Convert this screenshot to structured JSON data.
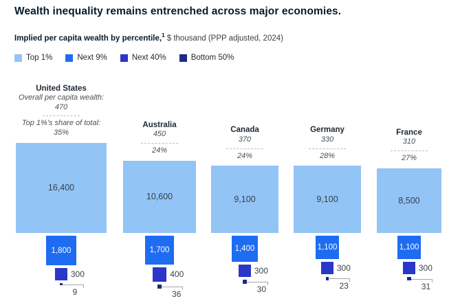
{
  "header": {
    "title": "Wealth inequality remains entrenched across major economies.",
    "subtitle_bold": "Implied per capita wealth by percentile,",
    "subtitle_sup": "1",
    "subtitle_rest": " $ thousand (PPP adjusted, 2024)"
  },
  "legend": {
    "items": [
      {
        "label": "Top 1%",
        "color": "#92c4f5"
      },
      {
        "label": "Next 9%",
        "color": "#1e6cf2"
      },
      {
        "label": "Next 40%",
        "color": "#2a37c8"
      },
      {
        "label": "Bottom 50%",
        "color": "#1c2b85"
      }
    ]
  },
  "chart_data": {
    "type": "proportional-area-squares",
    "title": "Wealth inequality remains entrenched across major economies.",
    "subtitle": "Implied per capita wealth by percentile, $ thousand (PPP adjusted, 2024)",
    "unit": "$ thousand per capita, PPP adjusted, 2024",
    "scale_note": "square area proportional to value",
    "segments": [
      "Top 1%",
      "Next 9%",
      "Next 40%",
      "Bottom 50%"
    ],
    "countries": [
      {
        "name": "United States",
        "overall_label": "Overall per capita wealth:",
        "overall": "470",
        "share_label": "Top 1%'s share of total:",
        "share": "35%",
        "values": {
          "top1": 16400,
          "next9": 1800,
          "next40": 300,
          "bottom50": 9
        },
        "labels": {
          "top1": "16,400",
          "next9": "1,800",
          "next40": "300",
          "bottom50": "9"
        }
      },
      {
        "name": "Australia",
        "overall": "450",
        "share": "24%",
        "values": {
          "top1": 10600,
          "next9": 1700,
          "next40": 400,
          "bottom50": 36
        },
        "labels": {
          "top1": "10,600",
          "next9": "1,700",
          "next40": "400",
          "bottom50": "36"
        }
      },
      {
        "name": "Canada",
        "overall": "370",
        "share": "24%",
        "values": {
          "top1": 9100,
          "next9": 1400,
          "next40": 300,
          "bottom50": 30
        },
        "labels": {
          "top1": "9,100",
          "next9": "1,400",
          "next40": "300",
          "bottom50": "30"
        }
      },
      {
        "name": "Germany",
        "overall": "330",
        "share": "28%",
        "values": {
          "top1": 9100,
          "next9": 1100,
          "next40": 300,
          "bottom50": 23
        },
        "labels": {
          "top1": "9,100",
          "next9": "1,100",
          "next40": "300",
          "bottom50": "23"
        }
      },
      {
        "name": "France",
        "overall": "310",
        "share": "27%",
        "values": {
          "top1": 8500,
          "next9": 1100,
          "next40": 300,
          "bottom50": 31
        },
        "labels": {
          "top1": "8,500",
          "next9": "1,100",
          "next40": "300",
          "bottom50": "31"
        }
      }
    ]
  }
}
